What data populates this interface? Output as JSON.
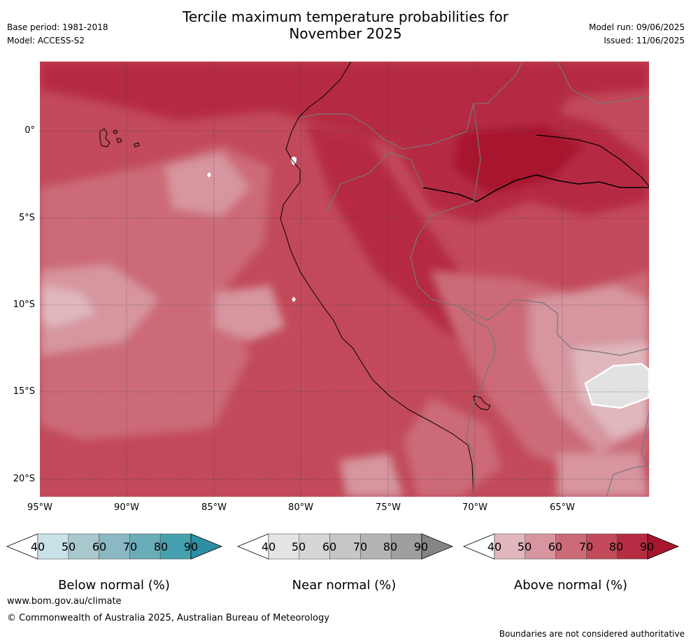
{
  "header": {
    "title_line1": "Tercile maximum temperature probabilities for",
    "title_line2": "November 2025",
    "base_period": "Base period: 1981-2018",
    "model": "Model: ACCESS-S2",
    "model_run": "Model run: 09/06/2025",
    "issued": "Issued: 11/06/2025"
  },
  "map": {
    "latitude_labels": [
      "0°",
      "5°S",
      "10°S",
      "15°S",
      "20°S"
    ],
    "longitude_labels": [
      "95°W",
      "90°W",
      "85°W",
      "80°W",
      "75°W",
      "70°W",
      "65°W"
    ],
    "dominant_category": "Above normal",
    "colors": {
      "above_40_50": "#e0b7bd",
      "above_50_60": "#d6959f",
      "above_60_70": "#cc6b78",
      "above_70_80": "#c24a5a",
      "above_80_90": "#b52c42",
      "above_90": "#a8162e",
      "near_normal_patch": "#e2e2e2"
    }
  },
  "colorbars": [
    {
      "label": "Below normal (%)",
      "ticks": [
        "40",
        "50",
        "60",
        "70",
        "80",
        "90"
      ],
      "colors": [
        "#ffffff",
        "#c9e2e8",
        "#a8c8ce",
        "#8ab8c3",
        "#6aacb8",
        "#46a0b0",
        "#2e8fa2"
      ]
    },
    {
      "label": "Near normal (%)",
      "ticks": [
        "40",
        "50",
        "60",
        "70",
        "80",
        "90"
      ],
      "colors": [
        "#ffffff",
        "#e4e4e4",
        "#d6d6d6",
        "#c6c6c6",
        "#b4b4b4",
        "#9e9e9e",
        "#858585"
      ]
    },
    {
      "label": "Above normal (%)",
      "ticks": [
        "40",
        "50",
        "60",
        "70",
        "80",
        "90"
      ],
      "colors": [
        "#ffffff",
        "#e0b7bd",
        "#d6959f",
        "#cc6b78",
        "#c24a5a",
        "#b52c42",
        "#a8162e"
      ]
    }
  ],
  "footer": {
    "url": "www.bom.gov.au/climate",
    "copyright": "© Commonwealth of Australia 2025, Australian Bureau of Meteorology",
    "disclaimer": "Boundaries are not considered authoritative"
  }
}
